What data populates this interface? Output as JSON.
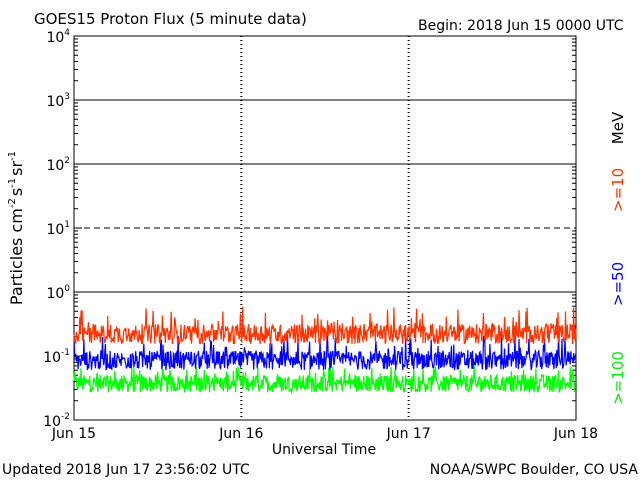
{
  "header": {
    "title": "GOES15 Proton Flux (5 minute data)",
    "begin": "Begin: 2018 Jun 15 0000 UTC"
  },
  "footer": {
    "updated": "Updated 2018 Jun 17 23:56:02 UTC",
    "credit": "NOAA/SWPC Boulder, CO USA"
  },
  "chart_data": {
    "type": "line",
    "title": "GOES15 Proton Flux (5 minute data)",
    "xlabel": "Universal Time",
    "ylabel_parts": [
      "Particles cm",
      "-2",
      "s",
      "-1",
      "sr",
      "-1"
    ],
    "y_scale": "log",
    "ylim": [
      0.01,
      10000
    ],
    "y_ticks": [
      {
        "base": "10",
        "exp": "4"
      },
      {
        "base": "10",
        "exp": "3"
      },
      {
        "base": "10",
        "exp": "2"
      },
      {
        "base": "10",
        "exp": "1"
      },
      {
        "base": "10",
        "exp": "0"
      },
      {
        "base": "10",
        "exp": "-1"
      },
      {
        "base": "10",
        "exp": "-2"
      }
    ],
    "x_ticks": [
      "Jun 15",
      "Jun 16",
      "Jun 17",
      "Jun 18"
    ],
    "xlim_days": [
      15,
      18
    ],
    "grid": true,
    "legend_placement": "right",
    "legend_unit": "MeV",
    "threshold_lines": [
      {
        "value": 1000,
        "style": "solid"
      },
      {
        "value": 100,
        "style": "solid"
      },
      {
        "value": 10,
        "style": "dashed"
      },
      {
        "value": 1,
        "style": "solid"
      }
    ],
    "series": [
      {
        "name": ">=10",
        "color": "#ff3300",
        "min": 0.14,
        "max": 0.6,
        "typical": 0.22
      },
      {
        "name": ">=50",
        "color": "#0000ff",
        "min": 0.055,
        "max": 0.22,
        "typical": 0.085
      },
      {
        "name": ">=100",
        "color": "#00ff00",
        "min": 0.025,
        "max": 0.07,
        "typical": 0.037
      }
    ],
    "series_note_samples": 864
  }
}
